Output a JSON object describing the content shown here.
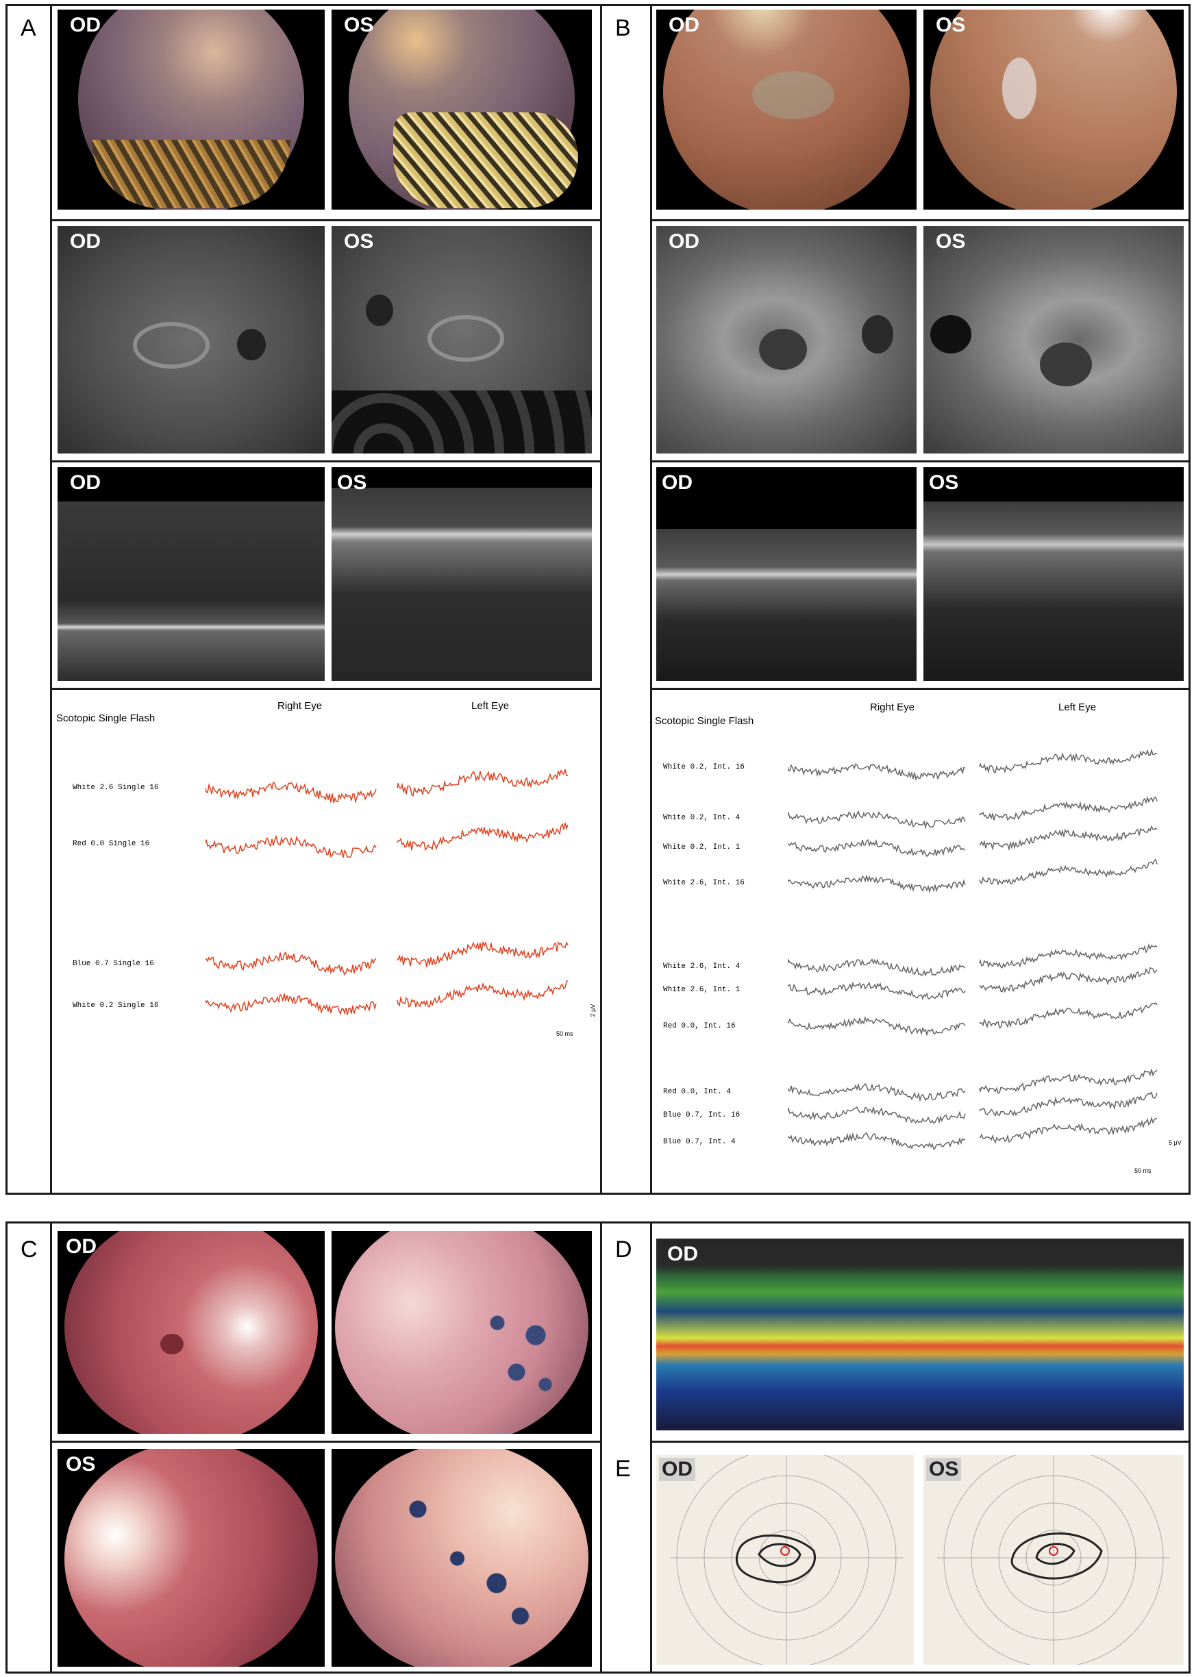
{
  "panels": {
    "A": {
      "letter": "A",
      "fundus_photo": {
        "od": "OD",
        "os": "OS"
      },
      "autofluorescence": {
        "od": "OD",
        "os": "OS"
      },
      "oct": {
        "od": "OD",
        "os": "OS"
      },
      "erg": {
        "title": "Scotopic Single Flash",
        "right_eye": "Right Eye",
        "left_eye": "Left Eye",
        "rows": [
          "White 2.6 Single 16",
          "Red 0.0 Single 16",
          "Blue 0.7 Single 16",
          "White 0.2 Single 16"
        ],
        "scale_time": "50 ms",
        "scale_amp": "2 µV",
        "trace_color": "#e0401e"
      }
    },
    "B": {
      "letter": "B",
      "fundus_photo": {
        "od": "OD",
        "os": "OS"
      },
      "autofluorescence": {
        "od": "OD",
        "os": "OS"
      },
      "oct": {
        "od": "OD",
        "os": "OS"
      },
      "erg": {
        "title": "Scotopic Single Flash",
        "right_eye": "Right Eye",
        "left_eye": "Left Eye",
        "rows": [
          "White 0.2, Int. 16",
          "White 0.2, Int. 4",
          "White 0.2, Int. 1",
          "White 2.6, Int. 16",
          "White 2.6, Int. 4",
          "White 2.6, Int. 1",
          "Red 0.0, Int. 16",
          "Red 0.0, Int. 4",
          "Blue 0.7, Int. 16",
          "Blue 0.7, Int. 4"
        ],
        "scale_time": "50 ms",
        "scale_amp": "5 µV",
        "trace_color": "#666666"
      }
    },
    "C": {
      "letter": "C",
      "top_label": "OD",
      "bottom_label": "OS"
    },
    "D": {
      "letter": "D",
      "label": "OD"
    },
    "E": {
      "letter": "E",
      "od": "OD",
      "os": "OS"
    }
  }
}
